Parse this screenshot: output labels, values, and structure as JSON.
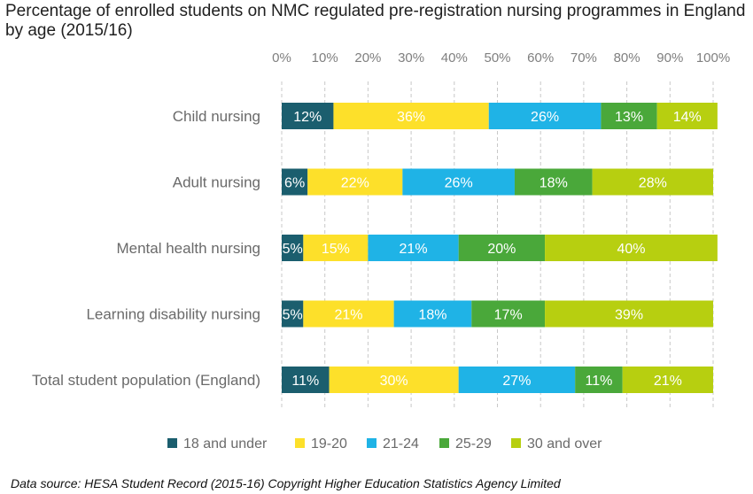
{
  "chart_data": {
    "type": "bar",
    "orientation": "horizontal",
    "stacked": true,
    "title": "Percentage of enrolled students on NMC regulated pre-registration nursing programmes in England by age (2015/16)",
    "source": "Data source: HESA Student Record (2015-16) Copyright Higher Education Statistics Agency Limited",
    "categories": [
      "Child nursing",
      "Adult nursing",
      "Mental health nursing",
      "Learning disability nursing",
      "Total student population (England)"
    ],
    "x_ticks": [
      "0%",
      "10%",
      "20%",
      "30%",
      "40%",
      "50%",
      "60%",
      "70%",
      "80%",
      "90%",
      "100%"
    ],
    "xlim": [
      0,
      100
    ],
    "x_axis_position": "top",
    "grid": "vertical dashed",
    "legend_position": "bottom",
    "series": [
      {
        "name": "18 and under",
        "color": "#1b5e6e",
        "values": [
          12,
          6,
          5,
          5,
          11
        ],
        "labels": [
          "12%",
          "6%",
          "5%",
          "5%",
          "11%"
        ]
      },
      {
        "name": "19-20",
        "color": "#fde02a",
        "values": [
          36,
          22,
          15,
          21,
          30
        ],
        "labels": [
          "36%",
          "22%",
          "15%",
          "21%",
          "30%"
        ]
      },
      {
        "name": "21-24",
        "color": "#1fb3e6",
        "values": [
          26,
          26,
          21,
          18,
          27
        ],
        "labels": [
          "26%",
          "26%",
          "21%",
          "18%",
          "27%"
        ]
      },
      {
        "name": "25-29",
        "color": "#4aa83a",
        "values": [
          13,
          18,
          20,
          17,
          11
        ],
        "labels": [
          "13%",
          "18%",
          "20%",
          "17%",
          "11%"
        ]
      },
      {
        "name": "30 and over",
        "color": "#b7cf10",
        "values": [
          14,
          28,
          40,
          39,
          21
        ],
        "labels": [
          "14%",
          "28%",
          "40%",
          "39%",
          "21%"
        ]
      }
    ]
  }
}
